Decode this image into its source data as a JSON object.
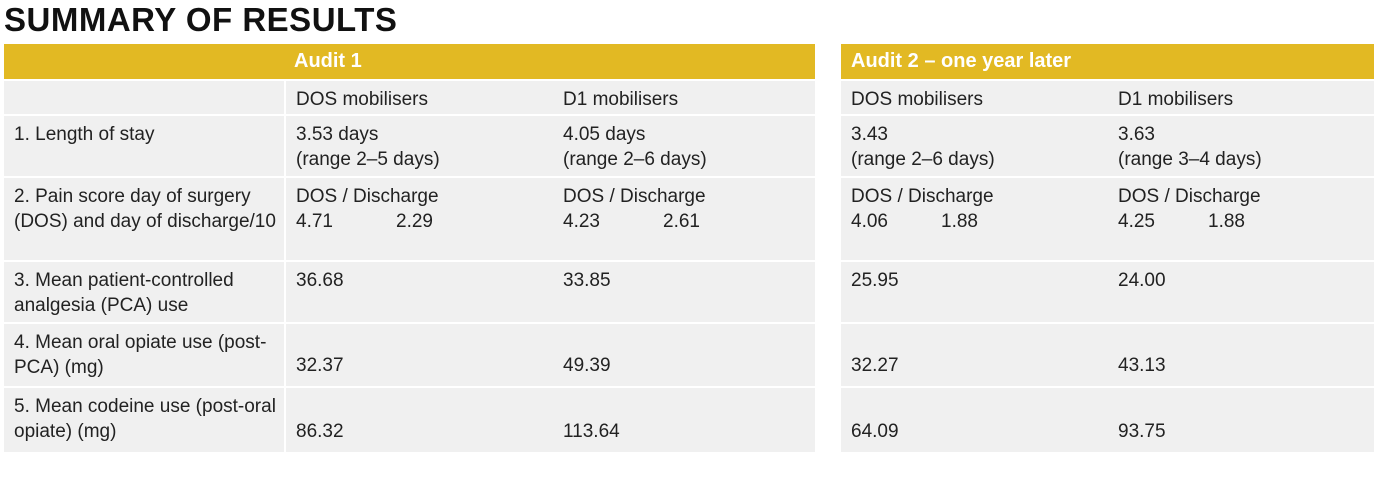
{
  "title": "SUMMARY OF RESULTS",
  "audit1": {
    "header": "Audit 1",
    "col1": "DOS mobilisers",
    "col2": "D1 mobilisers"
  },
  "audit2": {
    "header": "Audit 2 – one year later",
    "col1": "DOS mobilisers",
    "col2": "D1 mobilisers"
  },
  "rows": [
    {
      "label": "1. Length of stay",
      "a1_dos": [
        "3.53 days",
        "(range 2–5 days)"
      ],
      "a1_d1": [
        "4.05 days",
        "(range 2–6 days)"
      ],
      "a2_dos": [
        "3.43",
        "(range 2–6 days)"
      ],
      "a2_d1": [
        "3.63",
        "(range 3–4 days)"
      ]
    },
    {
      "label": "2. Pain score day of surgery (DOS) and day of discharge/10",
      "pair_label": "DOS / Discharge",
      "a1_dos": [
        "4.71",
        "2.29"
      ],
      "a1_d1": [
        "4.23",
        "2.61"
      ],
      "a2_dos": [
        "4.06",
        "1.88"
      ],
      "a2_d1": [
        "4.25",
        "1.88"
      ]
    },
    {
      "label": "3. Mean patient-controlled analgesia (PCA) use",
      "a1_dos": "36.68",
      "a1_d1": "33.85",
      "a2_dos": "25.95",
      "a2_d1": "24.00"
    },
    {
      "label": "4. Mean oral opiate use (post-PCA) (mg)",
      "a1_dos": "32.37",
      "a1_d1": "49.39",
      "a2_dos": "32.27",
      "a2_d1": "43.13"
    },
    {
      "label": "5. Mean codeine use (post-oral opiate) (mg)",
      "a1_dos": "86.32",
      "a1_d1": "113.64",
      "a2_dos": "64.09",
      "a2_d1": "93.75"
    }
  ],
  "colors": {
    "header_bg": "#e2b923",
    "row_bg": "#f0f0f0"
  }
}
